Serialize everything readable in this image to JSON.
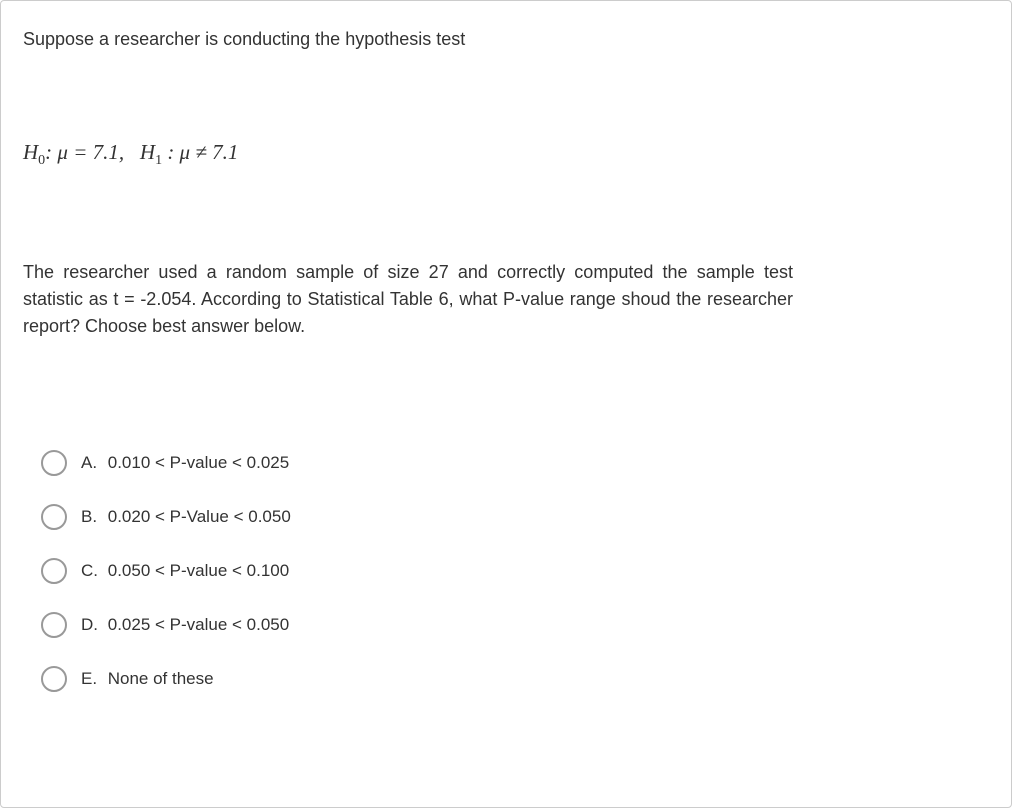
{
  "question": {
    "intro": "Suppose a researcher is conducting the hypothesis test",
    "hypothesis_h0_label": "H",
    "hypothesis_h0_sub": "0",
    "hypothesis_h0_content": ": μ = 7.1,",
    "hypothesis_h1_label": "H",
    "hypothesis_h1_sub": "1",
    "hypothesis_h1_content": " : μ ≠ 7.1",
    "body": "The researcher used a random sample of size 27 and correctly computed the sample test statistic as t = -2.054. According to Statistical Table 6, what P-value range shoud the researcher report? Choose best answer below.",
    "options": [
      {
        "label": "A.",
        "text": "0.010 < P-value < 0.025"
      },
      {
        "label": "B.",
        "text": "0.020 < P-Value < 0.050"
      },
      {
        "label": "C.",
        "text": "0.050 < P-value < 0.100"
      },
      {
        "label": "D.",
        "text": "0.025 < P-value < 0.050"
      },
      {
        "label": "E.",
        "text": "None of these"
      }
    ]
  },
  "styling": {
    "container_border_color": "#cccccc",
    "text_color": "#333333",
    "radio_border_color": "#999999",
    "background_color": "#ffffff",
    "intro_fontsize": 18,
    "hypothesis_fontsize": 21,
    "body_fontsize": 18,
    "option_fontsize": 17,
    "radio_diameter": 26
  }
}
